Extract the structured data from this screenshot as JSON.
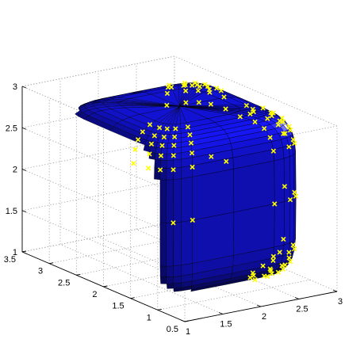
{
  "chart_data": {
    "type": "surface3d",
    "title": "",
    "xlabel": "",
    "ylabel": "",
    "zlabel": "",
    "surface_color": "#1414e6",
    "marker_color": "#ffff00",
    "marker_symbol": "x",
    "grid": true,
    "axes": {
      "x": {
        "ticks": [
          "1",
          "1.5",
          "2",
          "2.5",
          "3"
        ],
        "range": [
          1,
          3
        ]
      },
      "y": {
        "ticks": [
          "0.5",
          "1",
          "1.5",
          "2",
          "2.5",
          "3",
          "3.5"
        ],
        "range": [
          0.5,
          3.5
        ]
      },
      "z": {
        "ticks": [
          "1",
          "1.5",
          "2",
          "2.5",
          "3"
        ],
        "range": [
          1,
          3
        ]
      }
    },
    "shape": {
      "type": "superellipsoid",
      "center": [
        2,
        2,
        2
      ],
      "half_extent": 1,
      "exponent": 6
    }
  }
}
